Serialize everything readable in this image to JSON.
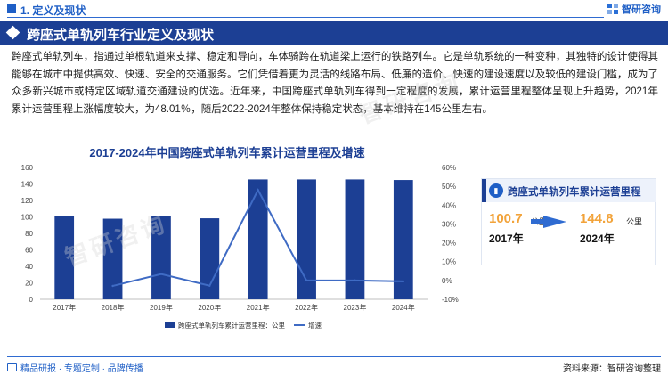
{
  "header": {
    "section_title": "1. 定义及现状",
    "brand": "智研咨询"
  },
  "banner": {
    "title": "跨座式单轨列车行业定义及现状"
  },
  "body": {
    "paragraph": "跨座式单轨列车，指通过单根轨道来支撑、稳定和导向，车体骑跨在轨道梁上运行的铁路列车。它是单轨系统的一种变种，其独特的设计使得其能够在城市中提供高效、快速、安全的交通服务。它们凭借着更为灵活的线路布局、低廉的造价、快速的建设速度以及较低的建设门槛，成为了众多新兴城市或特定区域轨道交通建设的优选。近年来，中国跨座式单轨列车得到一定程度的发展，累计运营里程整体呈现上升趋势，2021年累计运营里程上涨幅度较大，为48.01％，随后2022-2024年整体保持稳定状态，基本维持在145公里左右。"
  },
  "chart_data": {
    "type": "bar",
    "title": "2017-2024年中国跨座式单轨列车累计运营里程及增速",
    "categories": [
      "2017年",
      "2018年",
      "2019年",
      "2020年",
      "2021年",
      "2022年",
      "2023年",
      "2024年"
    ],
    "series": [
      {
        "name": "跨座式单轨列车累计运营里程：公里",
        "kind": "bar",
        "axis": "left",
        "values": [
          100.7,
          97.8,
          101.1,
          98.3,
          145.5,
          145.5,
          145.5,
          144.8
        ]
      },
      {
        "name": "增速",
        "kind": "line",
        "axis": "right",
        "values": [
          null,
          -2.9,
          3.4,
          -2.8,
          48.01,
          0.0,
          0.0,
          -0.5
        ]
      }
    ],
    "y_left": {
      "min": 0,
      "max": 160,
      "ticks": [
        "0",
        "20",
        "40",
        "60",
        "80",
        "100",
        "120",
        "140",
        "160"
      ]
    },
    "y_right": {
      "min": -10,
      "max": 60,
      "ticks": [
        "-10%",
        "0%",
        "10%",
        "20%",
        "30%",
        "40%",
        "50%",
        "60%"
      ]
    },
    "legend_position": "bottom",
    "grid": false,
    "colors": {
      "bar": "#1c3f94",
      "line": "#3f6bc4"
    }
  },
  "side_card": {
    "title": "跨座式单轨列车累计运营里程",
    "start_value": "100.7",
    "start_unit": "公里",
    "start_year": "2017年",
    "end_value": "144.8",
    "end_unit": "公里",
    "end_year": "2024年"
  },
  "footer": {
    "left_text": "精品研报 · 专题定制 · 品牌传播",
    "right_text": "资料来源：智研咨询整理"
  },
  "watermark": "智研咨询"
}
